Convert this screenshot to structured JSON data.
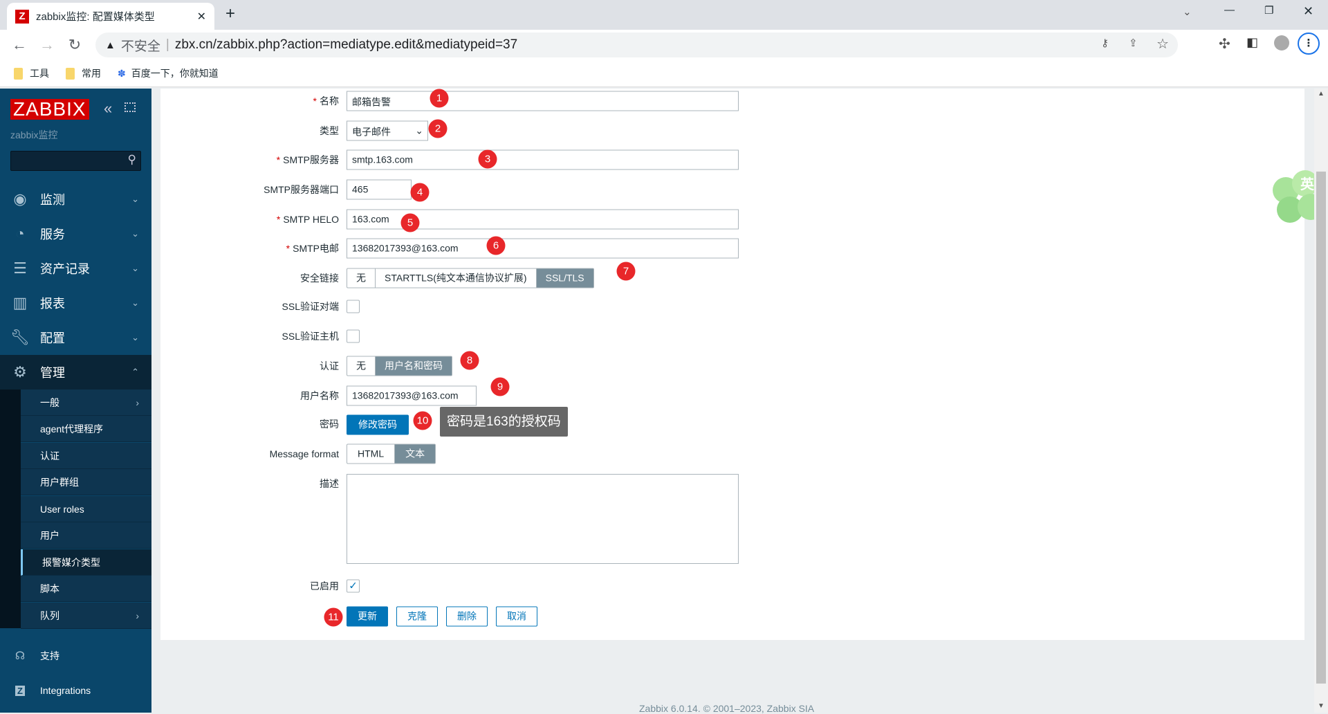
{
  "browser": {
    "tab_title": "zabbix监控: 配置媒体类型",
    "security": "不安全",
    "url": "zbx.cn/zabbix.php?action=mediatype.edit&mediatypeid=37",
    "bookmarks": [
      "工具",
      "常用",
      "百度一下，你就知道"
    ]
  },
  "sidebar": {
    "logo": "ZABBIX",
    "server_name": "zabbix监控",
    "search_placeholder": "",
    "menu": [
      {
        "label": "监测",
        "icon": "eye-icon"
      },
      {
        "label": "服务",
        "icon": "stopwatch-icon"
      },
      {
        "label": "资产记录",
        "icon": "list-icon"
      },
      {
        "label": "报表",
        "icon": "bar-chart-icon"
      },
      {
        "label": "配置",
        "icon": "wrench-icon"
      },
      {
        "label": "管理",
        "icon": "gear-icon"
      }
    ],
    "submenu": [
      "一般",
      "agent代理程序",
      "认证",
      "用户群组",
      "User roles",
      "用户",
      "报警媒介类型",
      "脚本",
      "队列"
    ],
    "bottom": [
      {
        "label": "支持",
        "icon": "headset-icon"
      },
      {
        "label": "Integrations",
        "icon": "zabbix-z-icon"
      }
    ]
  },
  "form": {
    "name": {
      "label": "名称",
      "value": "邮箱告警"
    },
    "type": {
      "label": "类型",
      "value": "电子邮件"
    },
    "smtp_server": {
      "label": "SMTP服务器",
      "value": "smtp.163.com"
    },
    "smtp_port": {
      "label": "SMTP服务器端口",
      "value": "465"
    },
    "smtp_helo": {
      "label": "SMTP HELO",
      "value": "163.com"
    },
    "smtp_email": {
      "label": "SMTP电邮",
      "value": "13682017393@163.com"
    },
    "security": {
      "label": "安全链接",
      "options": [
        "无",
        "STARTTLS(纯文本通信协议扩展)",
        "SSL/TLS"
      ],
      "selected": "SSL/TLS"
    },
    "ssl_verify_peer": {
      "label": "SSL验证对端",
      "checked": false
    },
    "ssl_verify_host": {
      "label": "SSL验证主机",
      "checked": false
    },
    "auth": {
      "label": "认证",
      "options": [
        "无",
        "用户名和密码"
      ],
      "selected": "用户名和密码"
    },
    "username": {
      "label": "用户名称",
      "value": "13682017393@163.com"
    },
    "password": {
      "label": "密码",
      "button": "修改密码"
    },
    "message_format": {
      "label": "Message format",
      "options": [
        "HTML",
        "文本"
      ],
      "selected": "文本"
    },
    "description": {
      "label": "描述",
      "value": ""
    },
    "enabled": {
      "label": "已启用",
      "checked": true
    },
    "buttons": {
      "update": "更新",
      "clone": "克隆",
      "delete": "删除",
      "cancel": "取消"
    }
  },
  "annotations": {
    "badges": [
      "1",
      "2",
      "3",
      "4",
      "5",
      "6",
      "7",
      "8",
      "9",
      "10",
      "11"
    ],
    "tooltip": "密码是163的授权码"
  },
  "footer": "Zabbix 6.0.14. © 2001–2023, Zabbix SIA",
  "decoration": {
    "clover_text": "英"
  }
}
